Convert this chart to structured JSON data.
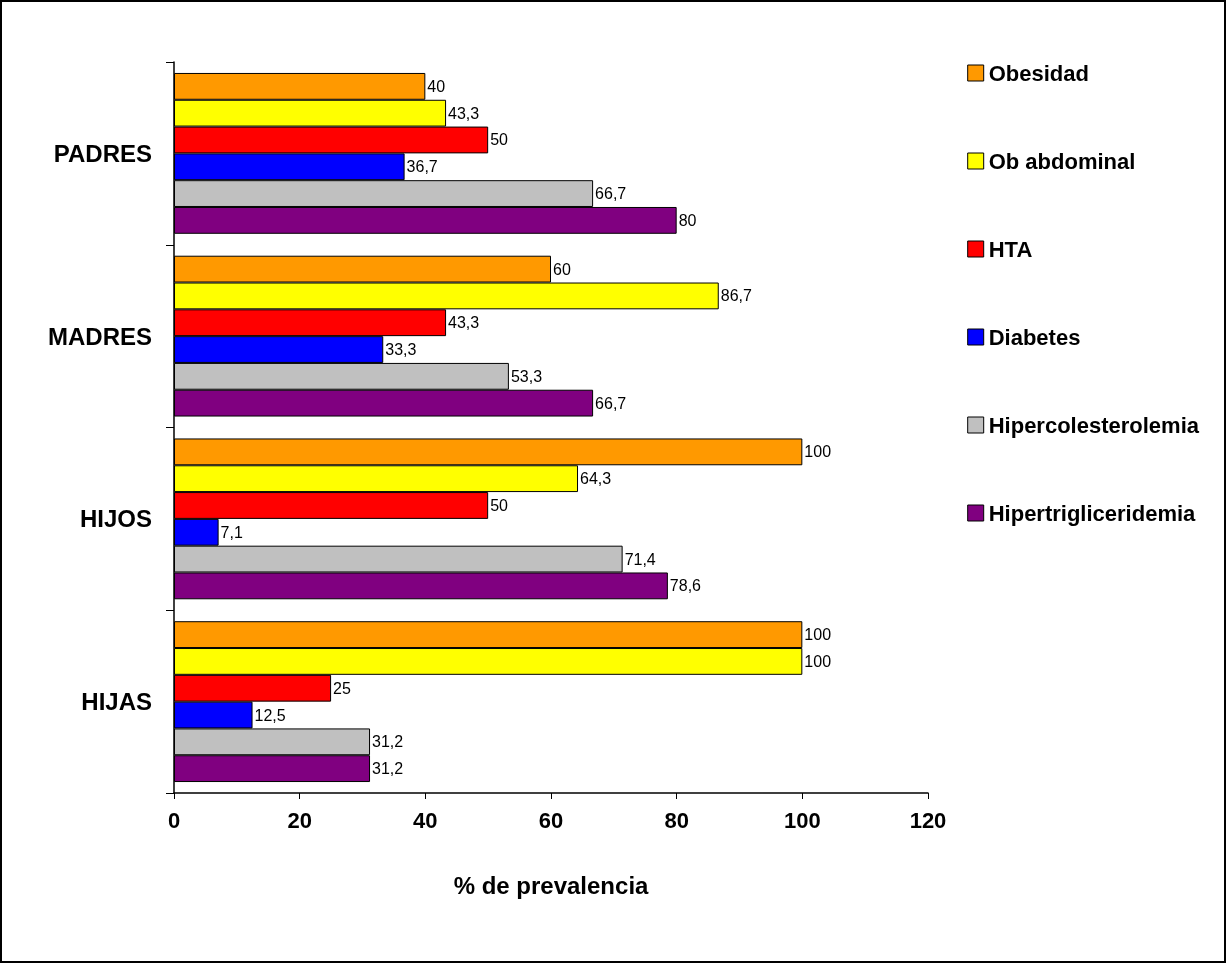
{
  "chart_data": {
    "type": "bar",
    "orientation": "horizontal",
    "xlabel": "% de prevalencia",
    "categories": [
      "PADRES",
      "MADRES",
      "HIJOS",
      "HIJAS"
    ],
    "series": [
      {
        "name": "Obesidad",
        "color": "#ff9900",
        "values": [
          40,
          60,
          100,
          100
        ],
        "value_labels": [
          "40",
          "60",
          "100",
          "100"
        ]
      },
      {
        "name": "Ob abdominal",
        "color": "#ffff00",
        "values": [
          43.3,
          86.7,
          64.3,
          100
        ],
        "value_labels": [
          "43,3",
          "86,7",
          "64,3",
          "100"
        ]
      },
      {
        "name": "HTA",
        "color": "#ff0000",
        "values": [
          50,
          43.3,
          50,
          25
        ],
        "value_labels": [
          "50",
          "43,3",
          "50",
          "25"
        ]
      },
      {
        "name": "Diabetes",
        "color": "#0000ff",
        "values": [
          36.7,
          33.3,
          7.1,
          12.5
        ],
        "value_labels": [
          "36,7",
          "33,3",
          "7,1",
          "12,5"
        ]
      },
      {
        "name": "Hipercolesterolemia",
        "color": "#c0c0c0",
        "values": [
          66.7,
          53.3,
          71.4,
          31.2
        ],
        "value_labels": [
          "66,7",
          "53,3",
          "71,4",
          "31,2"
        ]
      },
      {
        "name": "Hipertrigliceridemia",
        "color": "#800080",
        "values": [
          80,
          66.7,
          78.6,
          31.2
        ],
        "value_labels": [
          "80",
          "66,7",
          "78,6",
          "31,2"
        ]
      }
    ],
    "xlim": [
      0,
      120
    ],
    "xticks": [
      0,
      20,
      40,
      60,
      80,
      100,
      120
    ],
    "grid": false,
    "legend": "right"
  }
}
